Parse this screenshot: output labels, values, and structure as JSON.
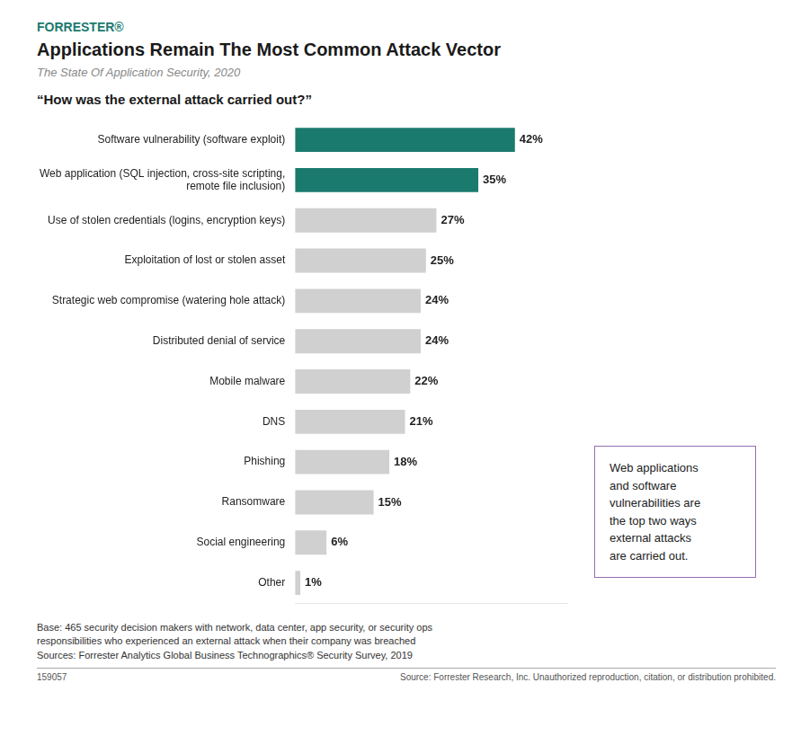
{
  "chart_data": {
    "type": "bar",
    "orientation": "horizontal",
    "brand": "FORRESTER®",
    "title": "Applications Remain The Most Common Attack Vector",
    "subtitle": "The State Of Application Security, 2020",
    "question": "“How was the external attack carried out?”",
    "categories": [
      "Software vulnerability (software exploit)",
      "Web application (SQL injection, cross-site scripting,\nremote file inclusion)",
      "Use of stolen credentials (logins, encryption keys)",
      "Exploitation of lost or stolen asset",
      "Strategic web compromise (watering hole attack)",
      "Distributed denial of service",
      "Mobile malware",
      "DNS",
      "Phishing",
      "Ransomware",
      "Social engineering",
      "Other"
    ],
    "values": [
      42,
      35,
      27,
      25,
      24,
      24,
      22,
      21,
      18,
      15,
      6,
      1
    ],
    "value_labels": [
      "42%",
      "35%",
      "27%",
      "25%",
      "24%",
      "24%",
      "22%",
      "21%",
      "18%",
      "15%",
      "6%",
      "1%"
    ],
    "colors": [
      "#1a7a6e",
      "#1a7a6e",
      "#d0d0d0",
      "#d0d0d0",
      "#d0d0d0",
      "#d0d0d0",
      "#d0d0d0",
      "#d0d0d0",
      "#d0d0d0",
      "#d0d0d0",
      "#d0d0d0",
      "#d0d0d0"
    ],
    "data_labels": true,
    "xlim": [
      0,
      52
    ],
    "tick_labels": "y",
    "grid": false,
    "annotation": "Web applications\nand software\nvulnerabilities are\nthe top two ways\nexternal attacks\nare carried out.",
    "footnotes": [
      "Base: 465 security decision makers with network, data center, app security, or security ops",
      "responsibilities who experienced an external attack when their company was breached",
      "Sources: Forrester Analytics Global Business Technographics® Security Survey, 2019"
    ],
    "footer_left": "159057",
    "footer_right": "Source: Forrester Research, Inc. Unauthorized reproduction, citation, or distribution prohibited."
  }
}
